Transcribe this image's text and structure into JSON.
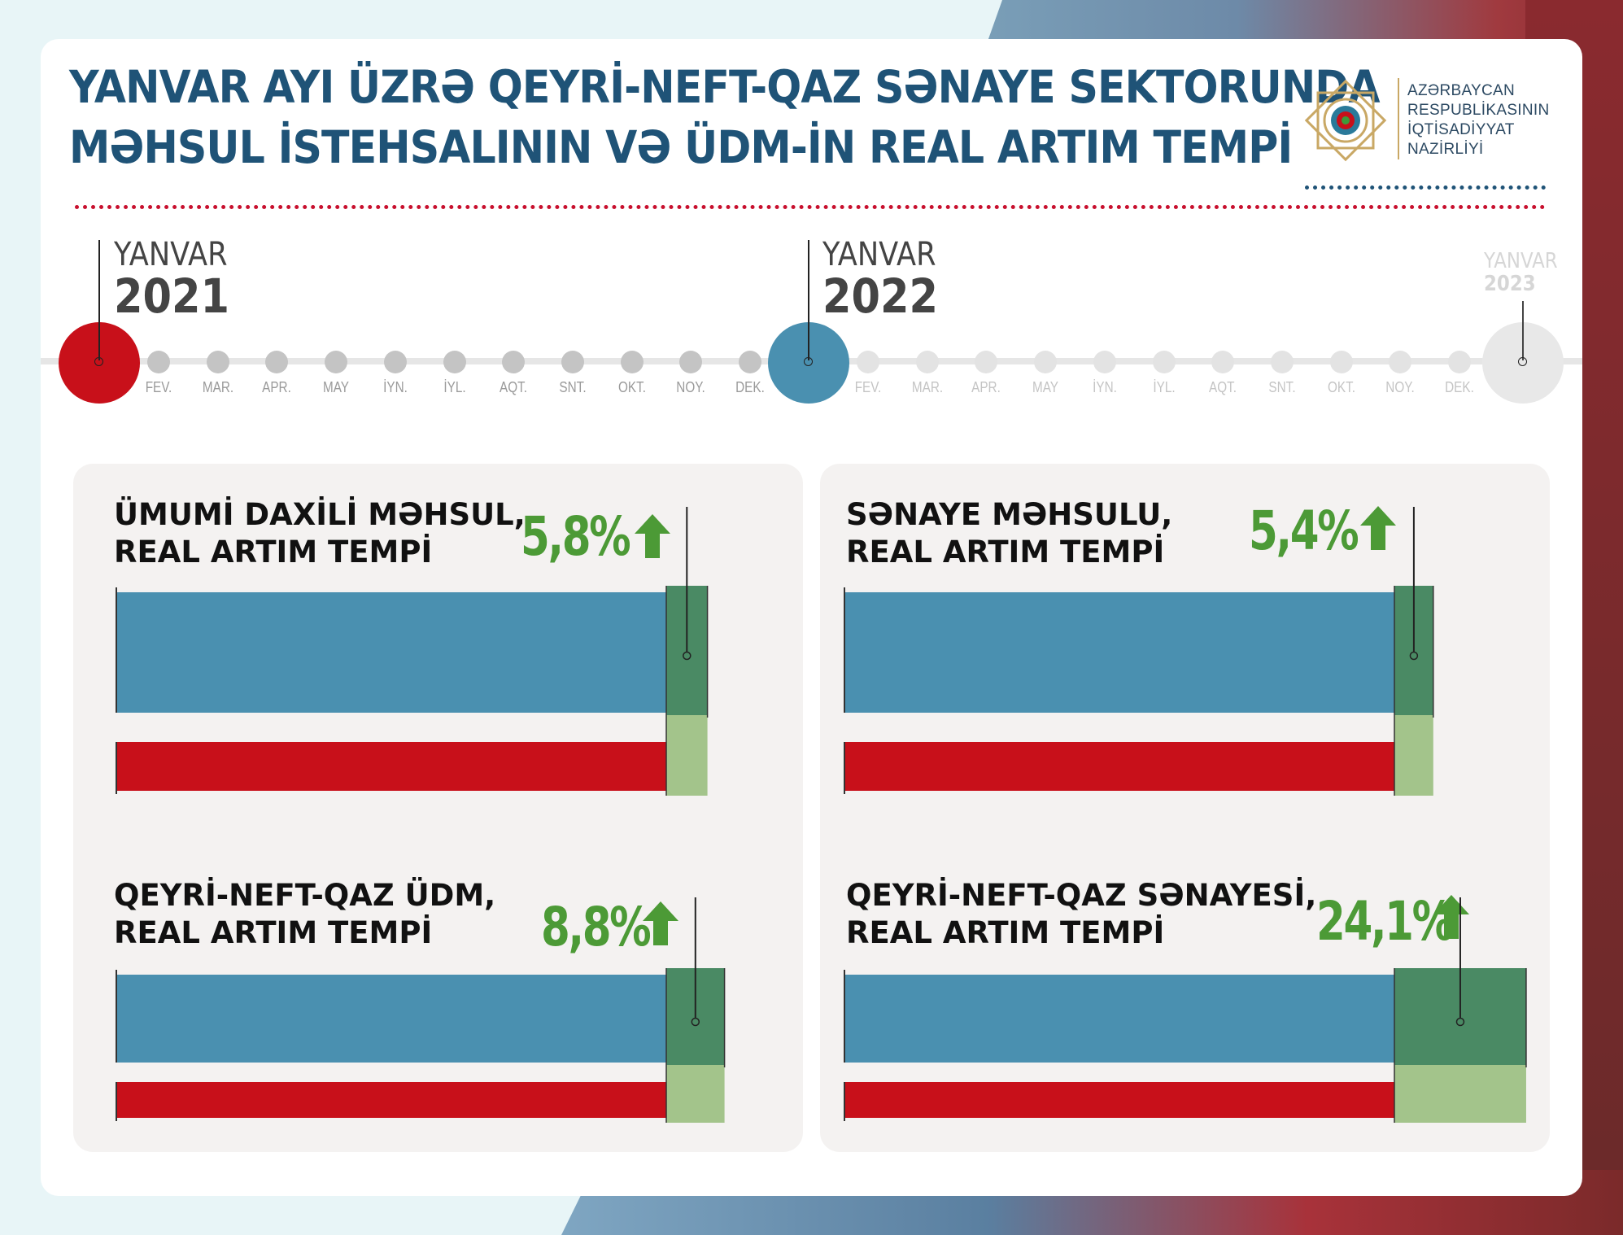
{
  "header": {
    "title_line1": "YANVAR AYI ÜZRƏ QEYRİ-NEFT-QAZ SƏNAYE SEKTORUNDA",
    "title_line2": "MƏHSUL İSTEHSALININ VƏ ÜDM-İN REAL ARTIM TEMPİ"
  },
  "ministry": {
    "line1": "AZƏRBAYCAN",
    "line2": "RESPUBLİKASININ",
    "line3": "İQTİSADİYYAT",
    "line4": "NAZİRLİYİ"
  },
  "timeline": {
    "years": [
      {
        "month": "YANVAR",
        "year": "2021",
        "color": "#c8101a"
      },
      {
        "month": "YANVAR",
        "year": "2022",
        "color": "#4a90b0"
      },
      {
        "month": "YANVAR",
        "year": "2023",
        "color": "#e8e8e8"
      }
    ],
    "months": [
      "FEV.",
      "MAR.",
      "APR.",
      "MAY",
      "İYN.",
      "İYL.",
      "AQT.",
      "SNT.",
      "OKT.",
      "NOY.",
      "DEK."
    ]
  },
  "colors": {
    "title": "#1f5377",
    "bar_2022": "#4a90b0",
    "bar_2021": "#c8101a",
    "growth_dark": "#4a8a64",
    "growth_light": "#a3c48b",
    "growth_text": "#4c9a36"
  },
  "chart_data": [
    {
      "type": "bar",
      "orientation": "horizontal",
      "label_line1": "ÜMUMİ DAXİLİ MƏHSUL,",
      "label_line2": "REAL ARTIM TEMPİ",
      "growth_label": "5,8%",
      "growth_pct": 5.8,
      "series": [
        {
          "name": "2022",
          "values": [
            105.8
          ]
        },
        {
          "name": "2021",
          "values": [
            100
          ]
        }
      ]
    },
    {
      "type": "bar",
      "orientation": "horizontal",
      "label_line1": "SƏNAYE MƏHSULU,",
      "label_line2": "REAL ARTIM TEMPİ",
      "growth_label": "5,4%",
      "growth_pct": 5.4,
      "series": [
        {
          "name": "2022",
          "values": [
            105.4
          ]
        },
        {
          "name": "2021",
          "values": [
            100
          ]
        }
      ]
    },
    {
      "type": "bar",
      "orientation": "horizontal",
      "label_line1": "QEYRİ-NEFT-QAZ ÜDM,",
      "label_line2": "REAL ARTIM TEMPİ",
      "growth_label": "8,8%",
      "growth_pct": 8.8,
      "series": [
        {
          "name": "2022",
          "values": [
            108.8
          ]
        },
        {
          "name": "2021",
          "values": [
            100
          ]
        }
      ]
    },
    {
      "type": "bar",
      "orientation": "horizontal",
      "label_line1": "QEYRİ-NEFT-QAZ SƏNAYESİ,",
      "label_line2": "REAL ARTIM TEMPİ",
      "growth_label": "24,1%",
      "growth_pct": 24.1,
      "series": [
        {
          "name": "2022",
          "values": [
            124.1
          ]
        },
        {
          "name": "2021",
          "values": [
            100
          ]
        }
      ]
    }
  ]
}
